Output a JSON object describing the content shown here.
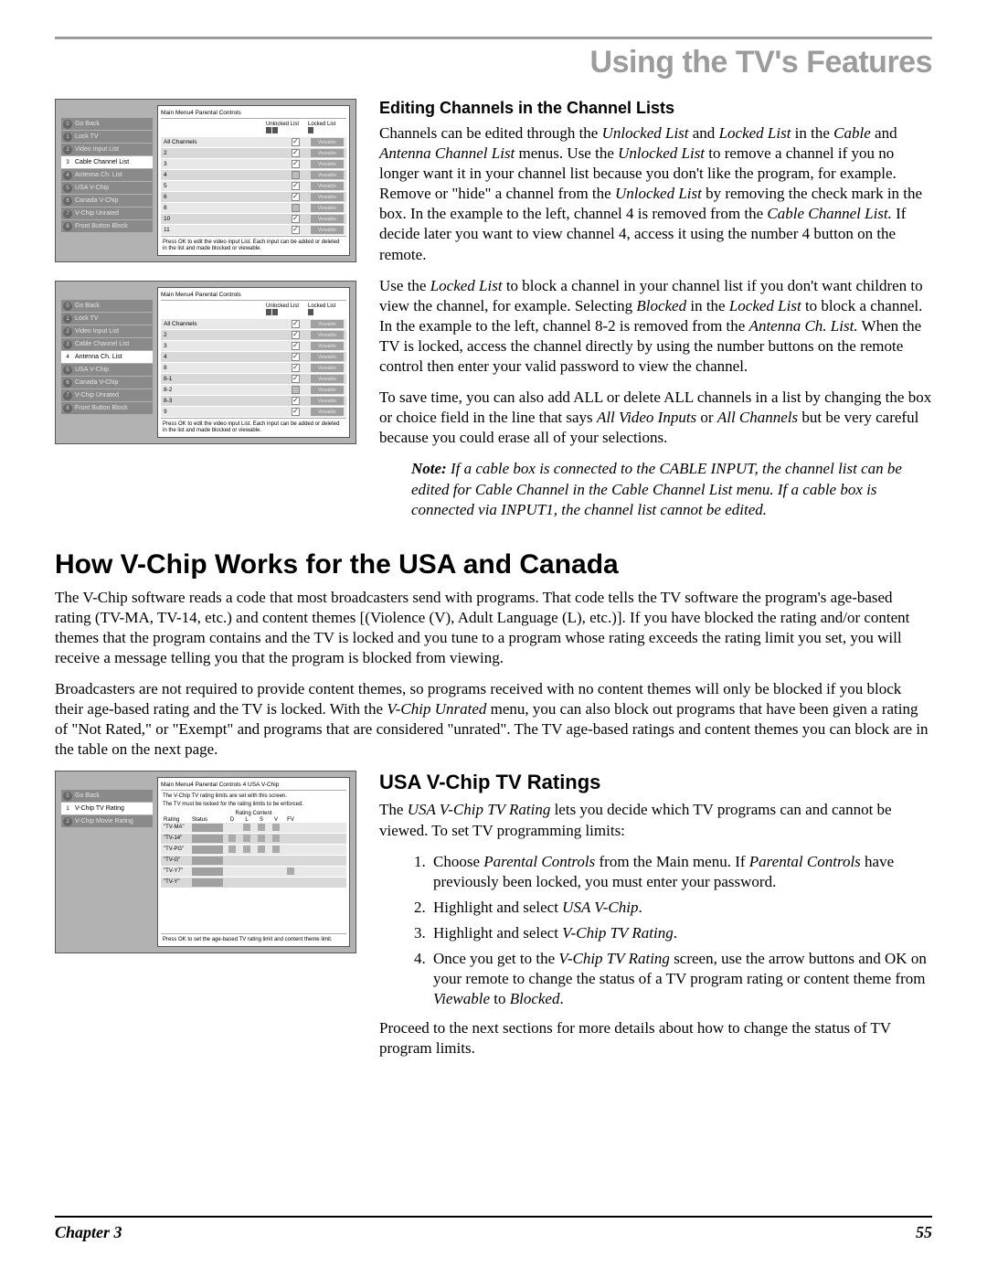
{
  "header": {
    "title": "Using the TV's Features"
  },
  "figure1": {
    "breadcrumb": "Main Menu4  Parental Controls",
    "head_unlocked": "Unlocked\nList",
    "head_locked": "Locked\nList",
    "nav": [
      {
        "n": "0",
        "label": "Go Back",
        "dark": true
      },
      {
        "n": "1",
        "label": "Lock TV",
        "dark": true
      },
      {
        "n": "2",
        "label": "Video Input List",
        "dark": true
      },
      {
        "n": "3",
        "label": "Cable Channel List",
        "sel": true
      },
      {
        "n": "4",
        "label": "Antenna Ch. List",
        "dark": true
      },
      {
        "n": "5",
        "label": "USA V-Chip",
        "dark": true
      },
      {
        "n": "6",
        "label": "Canada V-Chip",
        "dark": true
      },
      {
        "n": "7",
        "label": "V-Chip Unrated",
        "dark": true
      },
      {
        "n": "8",
        "label": "Front Button Block",
        "dark": true
      }
    ],
    "rows": [
      {
        "ch": "All Channels",
        "ul": true,
        "badge": "Viewable"
      },
      {
        "ch": "2",
        "ul": true,
        "badge": "Viewable"
      },
      {
        "ch": "3",
        "ul": true,
        "badge": "Viewable"
      },
      {
        "ch": "4",
        "ul": false,
        "grey": true,
        "badge": "Viewable"
      },
      {
        "ch": "5",
        "ul": true,
        "badge": "Viewable"
      },
      {
        "ch": "6",
        "ul": true,
        "badge": "Viewable"
      },
      {
        "ch": "8",
        "ul": false,
        "grey": true,
        "badge": "Viewable"
      },
      {
        "ch": "10",
        "ul": true,
        "badge": "Viewable"
      },
      {
        "ch": "11",
        "ul": true,
        "badge": "Viewable"
      }
    ],
    "note": "Press OK to edit the video input List. Each input can be added or deleted in the list and made blocked or viewable."
  },
  "figure2": {
    "breadcrumb": "Main Menu4  Parental Controls",
    "head_unlocked": "Unlocked\nList",
    "head_locked": "Locked\nList",
    "nav": [
      {
        "n": "0",
        "label": "Go Back",
        "dark": true
      },
      {
        "n": "1",
        "label": "Lock TV",
        "dark": true
      },
      {
        "n": "2",
        "label": "Video Input List",
        "dark": true
      },
      {
        "n": "3",
        "label": "Cable Channel List",
        "dark": true
      },
      {
        "n": "4",
        "label": "Antenna Ch. List",
        "sel": true
      },
      {
        "n": "5",
        "label": "USA V-Chip",
        "dark": true
      },
      {
        "n": "6",
        "label": "Canada V-Chip",
        "dark": true
      },
      {
        "n": "7",
        "label": "V-Chip Unrated",
        "dark": true
      },
      {
        "n": "8",
        "label": "Front Button Block",
        "dark": true
      }
    ],
    "rows": [
      {
        "ch": "All Channels",
        "ul": true,
        "badge": "Viewable"
      },
      {
        "ch": "2",
        "ul": true,
        "badge": "Viewable"
      },
      {
        "ch": "3",
        "ul": true,
        "badge": "Viewable"
      },
      {
        "ch": "4",
        "ul": true,
        "badge": "Viewable"
      },
      {
        "ch": "8",
        "ul": true,
        "badge": "Viewable"
      },
      {
        "ch": "8-1",
        "ul": true,
        "badge": "Viewable"
      },
      {
        "ch": "8-2",
        "ul": false,
        "grey": true,
        "badge": "Viewable"
      },
      {
        "ch": "8-3",
        "ul": true,
        "badge": "Viewable"
      },
      {
        "ch": "9",
        "ul": true,
        "badge": "Viewable"
      }
    ],
    "note": "Press OK to edit the video input List. Each input can be added or deleted in the list and made blocked or viewable."
  },
  "figure3": {
    "breadcrumb": "Main Menu4  Parental Controls 4  USA V-Chip",
    "sub1": "The V-Chip TV rating limits are set with this screen.",
    "sub2": "The TV must be locked for the rating limits to be enforced.",
    "rc": "Rating Content",
    "nav": [
      {
        "n": "0",
        "label": "Go Back",
        "dark": true
      },
      {
        "n": "1",
        "label": "V-Chip TV Rating",
        "sel": true
      },
      {
        "n": "2",
        "label": "V-Chip Movie Rating",
        "dark": true
      }
    ],
    "heads": [
      "Rating",
      "Status",
      "D",
      "L",
      "S",
      "V",
      "FV"
    ],
    "rows": [
      {
        "r": "\"TV-MA\"",
        "cells": [
          0,
          1,
          1,
          1,
          0
        ]
      },
      {
        "r": "\"TV-14\"",
        "cells": [
          1,
          1,
          1,
          1,
          0
        ]
      },
      {
        "r": "\"TV-PG\"",
        "cells": [
          1,
          1,
          1,
          1,
          0
        ]
      },
      {
        "r": "\"TV-G\"",
        "cells": [
          0,
          0,
          0,
          0,
          0
        ]
      },
      {
        "r": "\"TV-Y7\"",
        "cells": [
          0,
          0,
          0,
          0,
          1
        ]
      },
      {
        "r": "\"TV-Y\"",
        "cells": [
          0,
          0,
          0,
          0,
          0
        ]
      }
    ],
    "note": "Press OK to set the age-based TV rating limit and content theme limit."
  },
  "section1": {
    "h": "Editing Channels in the Channel Lists",
    "p1a": "Channels can be edited through the ",
    "p1b": "Unlocked List",
    "p1c": " and ",
    "p1d": "Locked List",
    "p1e": " in the ",
    "p1f": "Cable",
    "p1g": " and ",
    "p1h": "Antenna Channel List",
    "p1i": " menus. Use the ",
    "p1j": "Unlocked List",
    "p1k": " to remove a channel if you no longer want it in your channel list because you don't like the program, for example. Remove or \"hide\" a channel from the ",
    "p1l": "Unlocked List",
    "p1m": " by removing the check mark in the box. In the example to the left, channel 4 is removed from the ",
    "p1n": "Cable Channel List.",
    "p1o": " If decide later you want to view channel 4, access it using the number 4 button on the remote.",
    "p2a": "Use the ",
    "p2b": "Locked List",
    "p2c": " to block a channel in your channel list if you don't want children to view the channel, for example. Selecting ",
    "p2d": "Blocked",
    "p2e": " in the ",
    "p2f": "Locked List",
    "p2g": " to block a channel. In the example to the left, channel 8-2 is removed from the ",
    "p2h": "Antenna Ch. List.",
    "p2i": " When the TV is locked, access the channel directly by using the number buttons on the remote control then enter your valid password to view the channel.",
    "p3a": "To save time, you can also add ALL or delete ALL channels in a list by changing the box or choice field in the line that says ",
    "p3b": "All Video Inputs",
    "p3c": " or ",
    "p3d": "All Channels",
    "p3e": " but be very careful because you could erase all of your selections.",
    "notelabel": "Note:",
    "note": " If a cable box is connected to the CABLE INPUT, the channel list can be edited for Cable Channel in the Cable Channel List menu. If a cable box is connected via INPUT1, the channel list cannot be edited."
  },
  "section2": {
    "h": "How V-Chip Works for the USA and Canada",
    "p1": "The V-Chip software reads a code that most broadcasters send with programs. That code tells the TV software the program's age-based rating (TV-MA, TV-14, etc.) and content themes [(Violence (V), Adult Language (L), etc.)]. If you have blocked the rating and/or content themes that the program contains and the TV is locked and you tune to a program whose rating exceeds the rating limit you set, you will receive a message telling you that the program is blocked from viewing.",
    "p2a": "Broadcasters are not required to provide content themes, so programs received with no content themes will only be blocked if you block their age-based rating and the TV is locked. With the ",
    "p2b": "V-Chip Unrated",
    "p2c": " menu, you can also block out programs that have been given a rating of \"Not Rated,\" or \"Exempt\" and programs that are considered \"unrated\". The TV age-based ratings and content themes you can block are in the table on the next page."
  },
  "section3": {
    "h": "USA V-Chip TV Ratings",
    "p1a": "The ",
    "p1b": "USA V-Chip TV Rating",
    "p1c": " lets you decide which TV programs can and cannot be viewed. To set TV programming limits:",
    "li1a": "Choose ",
    "li1b": "Parental Controls",
    "li1c": " from the Main menu. If ",
    "li1d": "Parental Controls",
    "li1e": " have previously been locked, you must enter your password.",
    "li2a": "Highlight and select ",
    "li2b": "USA V-Chip",
    "li2c": ".",
    "li3a": "Highlight and select ",
    "li3b": "V-Chip TV Rating",
    "li3c": ".",
    "li4a": "Once you get to the ",
    "li4b": "V-Chip TV Rating",
    "li4c": " screen, use the arrow buttons and OK on your remote to change the status of a TV program rating or content theme from ",
    "li4d": "Viewable",
    "li4e": " to ",
    "li4f": "Blocked",
    "li4g": ".",
    "p2": "Proceed to the next sections for more details about how to change the status of TV program limits."
  },
  "footer": {
    "chapter": "Chapter 3",
    "page": "55"
  }
}
